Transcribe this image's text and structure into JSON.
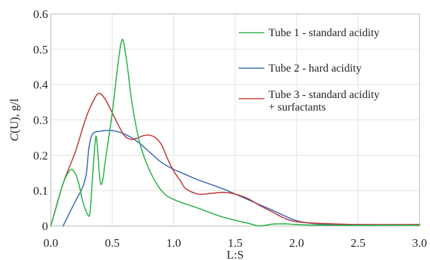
{
  "chart_data": {
    "type": "line",
    "xlabel": "L:S",
    "ylabel": "C(U), g/l",
    "ylabel_italic": "C",
    "ylabel_rest": "(U), g/l",
    "xlim": [
      0,
      3.0
    ],
    "ylim": [
      0,
      0.6
    ],
    "grid": true,
    "legend_position": "top-right",
    "x_ticks": [
      "0.0",
      "0.5",
      "1.0",
      "1.5",
      "2.0",
      "2.5",
      "3.0"
    ],
    "y_ticks": [
      "0",
      "0.1",
      "0.2",
      "0.3",
      "0.4",
      "0.5",
      "0.6"
    ],
    "series": [
      {
        "name": "Tube 1 - standard acidity",
        "color": "#2bb34a",
        "points": [
          [
            0.0,
            0.0
          ],
          [
            0.05,
            0.06
          ],
          [
            0.1,
            0.12
          ],
          [
            0.15,
            0.155
          ],
          [
            0.18,
            0.158
          ],
          [
            0.22,
            0.13
          ],
          [
            0.26,
            0.07
          ],
          [
            0.3,
            0.032
          ],
          [
            0.32,
            0.04
          ],
          [
            0.34,
            0.14
          ],
          [
            0.365,
            0.25
          ],
          [
            0.38,
            0.22
          ],
          [
            0.4,
            0.13
          ],
          [
            0.42,
            0.125
          ],
          [
            0.45,
            0.2
          ],
          [
            0.5,
            0.32
          ],
          [
            0.54,
            0.44
          ],
          [
            0.57,
            0.515
          ],
          [
            0.59,
            0.523
          ],
          [
            0.62,
            0.46
          ],
          [
            0.66,
            0.35
          ],
          [
            0.72,
            0.24
          ],
          [
            0.8,
            0.16
          ],
          [
            0.9,
            0.1
          ],
          [
            1.0,
            0.075
          ],
          [
            1.2,
            0.05
          ],
          [
            1.4,
            0.025
          ],
          [
            1.6,
            0.008
          ],
          [
            1.7,
            0.0
          ],
          [
            1.8,
            0.005
          ],
          [
            1.9,
            0.006
          ],
          [
            2.0,
            0.004
          ],
          [
            2.2,
            0.002
          ],
          [
            2.5,
            0.002
          ],
          [
            3.0,
            0.002
          ]
        ]
      },
      {
        "name": "Tube 2 - hard acidity",
        "color": "#3d6fb4",
        "points": [
          [
            0.1,
            0.0
          ],
          [
            0.2,
            0.07
          ],
          [
            0.26,
            0.11
          ],
          [
            0.29,
            0.15
          ],
          [
            0.31,
            0.22
          ],
          [
            0.34,
            0.26
          ],
          [
            0.4,
            0.268
          ],
          [
            0.5,
            0.27
          ],
          [
            0.6,
            0.26
          ],
          [
            0.7,
            0.24
          ],
          [
            0.8,
            0.21
          ],
          [
            0.9,
            0.18
          ],
          [
            1.0,
            0.16
          ],
          [
            1.1,
            0.145
          ],
          [
            1.2,
            0.13
          ],
          [
            1.4,
            0.105
          ],
          [
            1.6,
            0.075
          ],
          [
            1.8,
            0.045
          ],
          [
            2.0,
            0.015
          ],
          [
            2.2,
            0.005
          ],
          [
            2.5,
            0.002
          ],
          [
            3.0,
            0.003
          ]
        ]
      },
      {
        "name": "Tube 3 - standard acidity + surfactants",
        "color": "#c0393b",
        "points": [
          [
            0.0,
            0.0
          ],
          [
            0.1,
            0.12
          ],
          [
            0.2,
            0.21
          ],
          [
            0.28,
            0.3
          ],
          [
            0.34,
            0.35
          ],
          [
            0.39,
            0.375
          ],
          [
            0.44,
            0.36
          ],
          [
            0.5,
            0.32
          ],
          [
            0.55,
            0.285
          ],
          [
            0.6,
            0.255
          ],
          [
            0.65,
            0.245
          ],
          [
            0.7,
            0.248
          ],
          [
            0.75,
            0.255
          ],
          [
            0.8,
            0.257
          ],
          [
            0.85,
            0.25
          ],
          [
            0.9,
            0.23
          ],
          [
            0.95,
            0.19
          ],
          [
            1.0,
            0.155
          ],
          [
            1.05,
            0.13
          ],
          [
            1.1,
            0.105
          ],
          [
            1.2,
            0.09
          ],
          [
            1.3,
            0.092
          ],
          [
            1.4,
            0.095
          ],
          [
            1.5,
            0.09
          ],
          [
            1.6,
            0.078
          ],
          [
            1.7,
            0.058
          ],
          [
            1.8,
            0.04
          ],
          [
            1.9,
            0.022
          ],
          [
            2.0,
            0.012
          ],
          [
            2.2,
            0.007
          ],
          [
            2.5,
            0.004
          ],
          [
            3.0,
            0.004
          ]
        ]
      }
    ]
  }
}
